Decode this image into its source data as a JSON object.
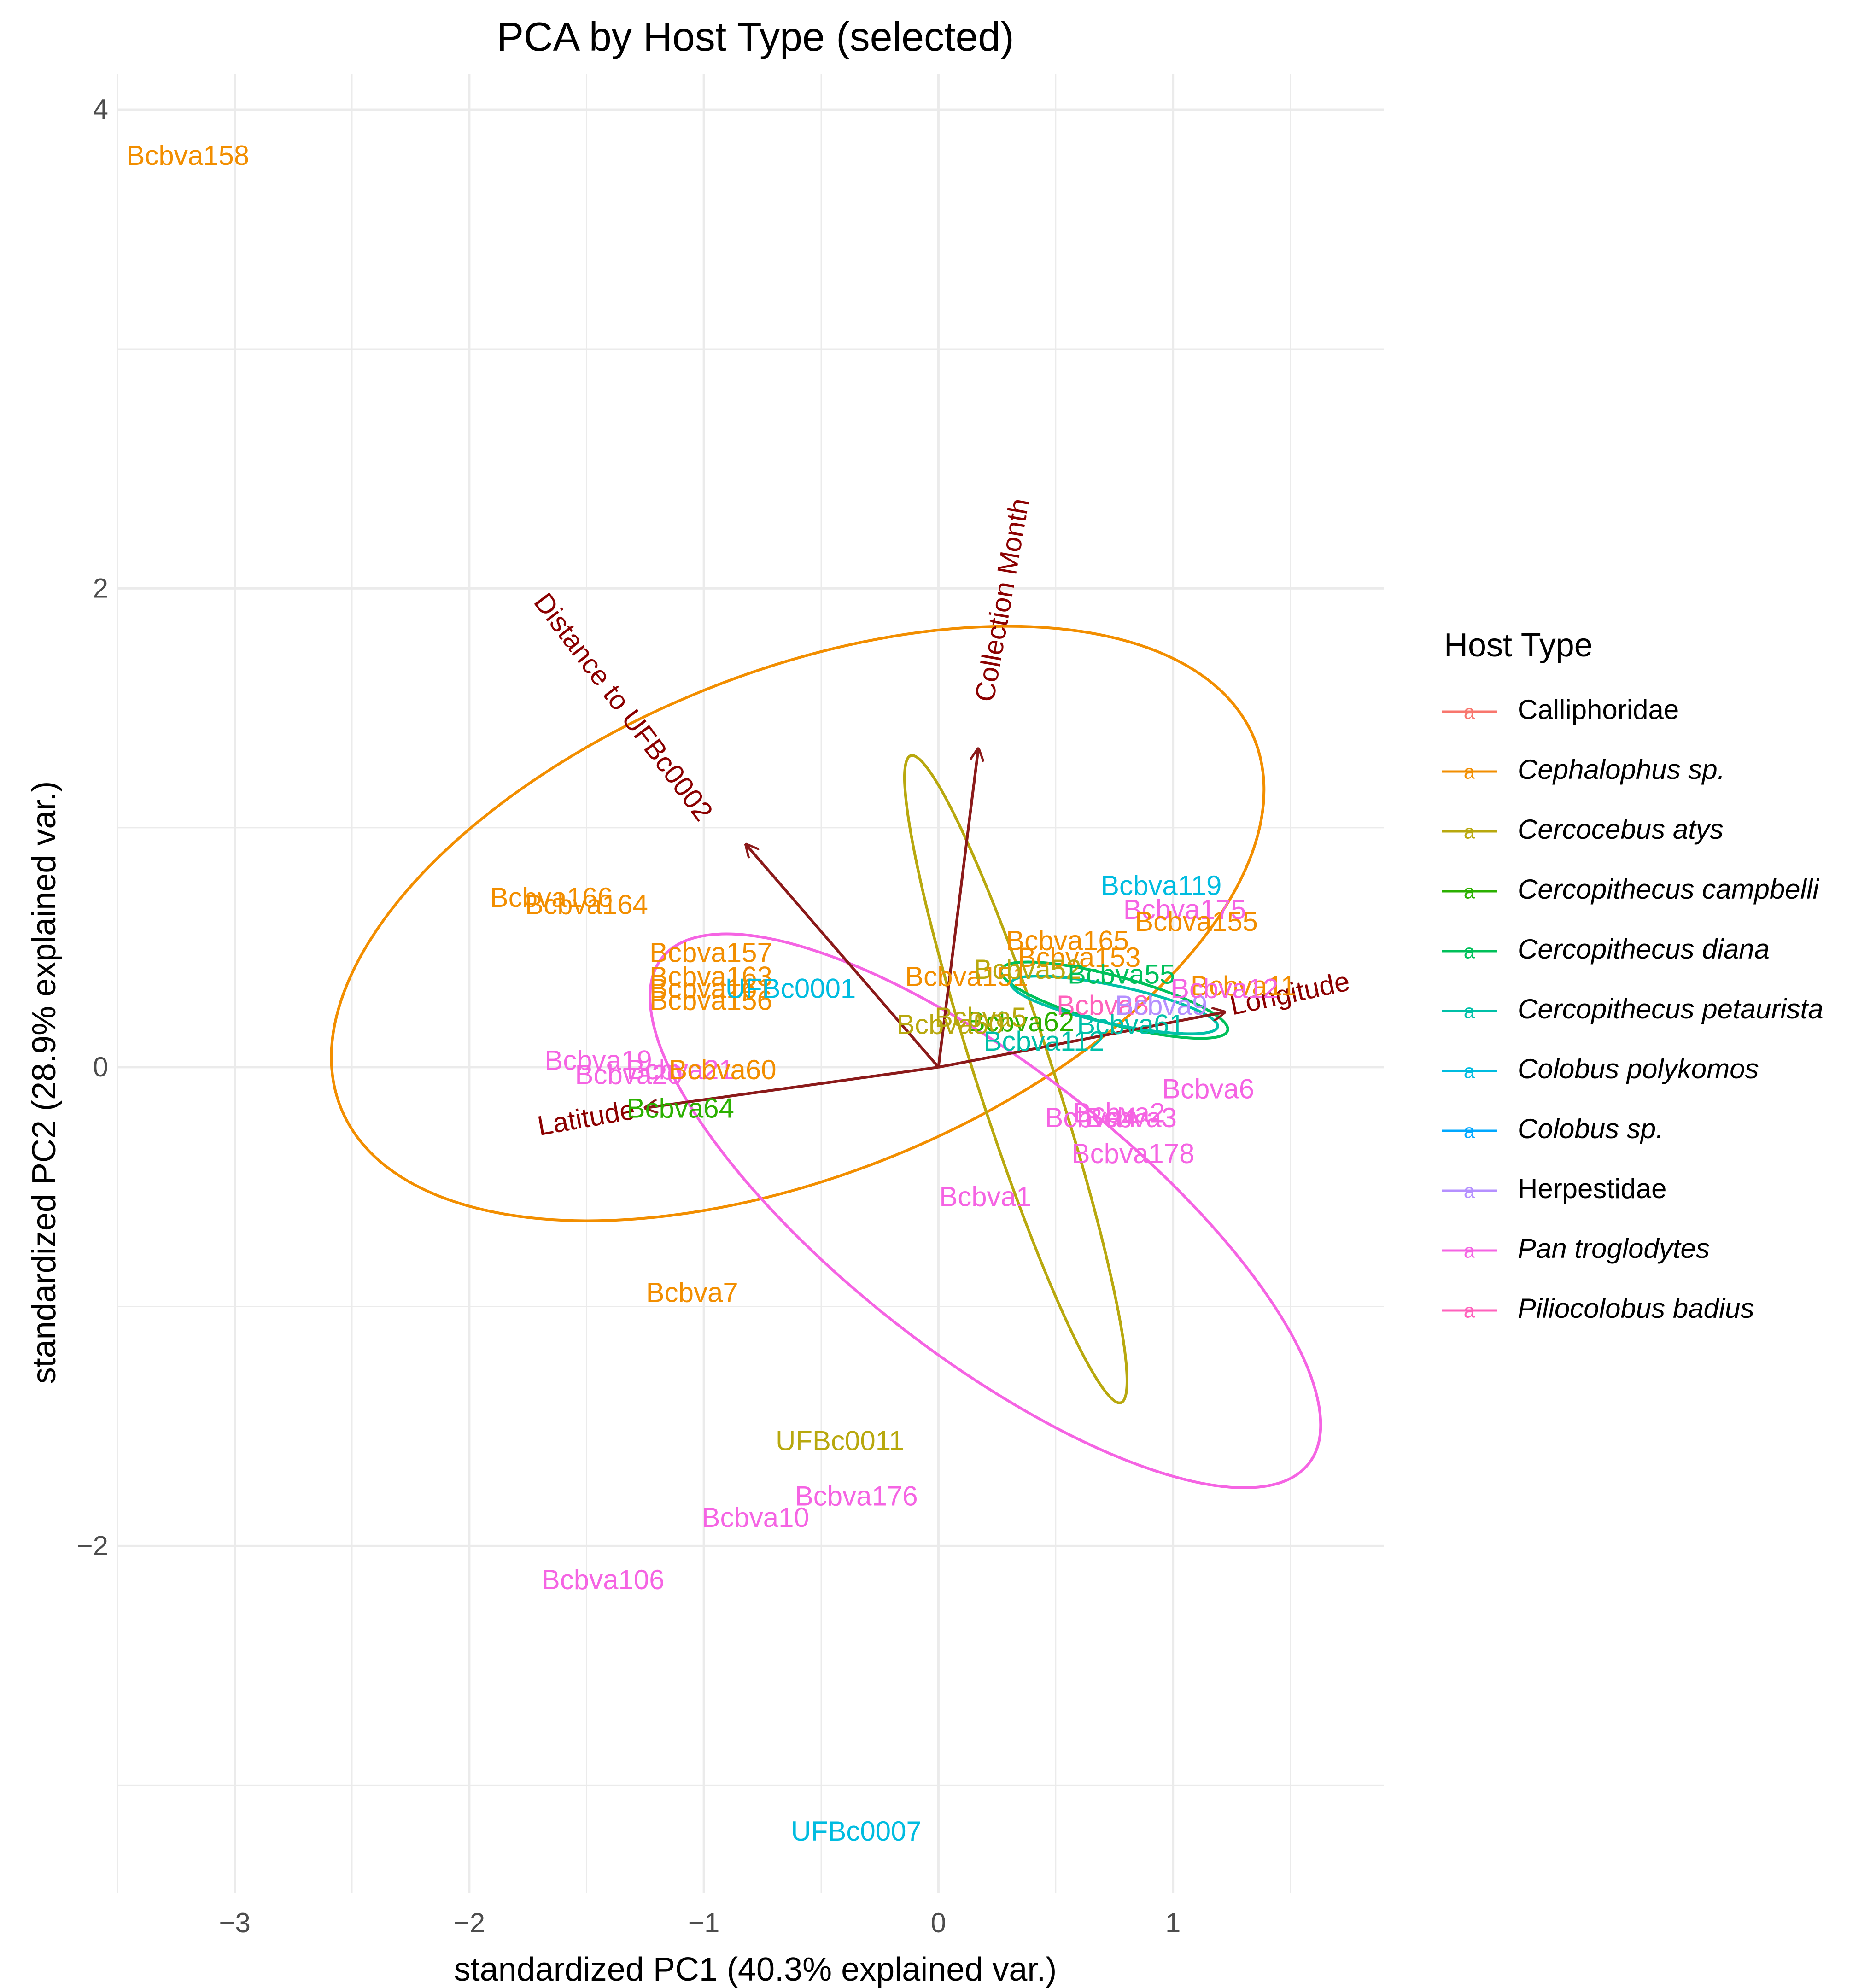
{
  "chart_data": {
    "type": "scatter",
    "title": "PCA by Host Type (selected)",
    "xlabel": "standardized PC1 (40.3% explained var.)",
    "ylabel": "standardized PC2 (28.9% explained var.)",
    "xlim": [
      -3.5,
      1.9
    ],
    "ylim": [
      -3.45,
      4.15
    ],
    "x_ticks": [
      -3,
      -2,
      -1,
      0,
      1
    ],
    "x_tick_labels": [
      "−3",
      "−2",
      "−1",
      "0",
      "1"
    ],
    "y_ticks": [
      -2,
      0,
      2,
      4
    ],
    "y_tick_labels": [
      "−2",
      "0",
      "2",
      "4"
    ],
    "grid": true,
    "legend": {
      "title": "Host Type",
      "position": "right",
      "key_glyph": "a",
      "entries": [
        {
          "name": "Calliphoridae",
          "color": "#F8766D",
          "italic": false
        },
        {
          "name": "Cephalophus sp.",
          "color": "#F28E00",
          "italic": true
        },
        {
          "name": "Cercocebus atys",
          "color": "#B8A80E",
          "italic": true
        },
        {
          "name": "Cercopithecus campbelli",
          "color": "#2BB000",
          "italic": true
        },
        {
          "name": "Cercopithecus diana",
          "color": "#00C05A",
          "italic": true
        },
        {
          "name": "Cercopithecus petaurista",
          "color": "#00C0A8",
          "italic": true
        },
        {
          "name": "Colobus polykomos",
          "color": "#00BCE0",
          "italic": true
        },
        {
          "name": "Colobus sp.",
          "color": "#00A8FF",
          "italic": true
        },
        {
          "name": "Herpestidae",
          "color": "#B590FF",
          "italic": false
        },
        {
          "name": "Pan troglodytes",
          "color": "#F564E3",
          "italic": true
        },
        {
          "name": "Piliocolobus badius",
          "color": "#FF62BC",
          "italic": true
        }
      ]
    },
    "loadings": [
      {
        "name": "Distance to UFBc0002",
        "x": -0.82,
        "y": 0.93,
        "label_x": -1.35,
        "label_y": 1.5,
        "label_angle": 53
      },
      {
        "name": "Collection Month",
        "x": 0.17,
        "y": 1.33,
        "label_x": 0.28,
        "label_y": 1.95,
        "label_angle": -80
      },
      {
        "name": "Longitude",
        "x": 1.22,
        "y": 0.23,
        "label_x": 1.5,
        "label_y": 0.3,
        "label_angle": -12
      },
      {
        "name": "Latitude",
        "x": -1.25,
        "y": -0.17,
        "label_x": -1.5,
        "label_y": -0.22,
        "label_angle": -10
      }
    ],
    "ellipses": [
      {
        "host": "Cephalophus sp.",
        "cx": -0.6,
        "cy": 0.6,
        "rx": 2.1,
        "ry": 1.05,
        "angle": -22
      },
      {
        "host": "Cercocebus atys",
        "cx": 0.33,
        "cy": -0.05,
        "rx": 1.45,
        "ry": 0.16,
        "angle": 72
      },
      {
        "host": "Pan troglodytes",
        "cx": 0.2,
        "cy": -0.6,
        "rx": 1.75,
        "ry": 0.6,
        "angle": 38
      },
      {
        "host": "Cercopithecus diana",
        "cx": 0.75,
        "cy": 0.28,
        "rx": 0.5,
        "ry": 0.1,
        "angle": 15
      },
      {
        "host": "Cercopithecus petaurista",
        "cx": 0.75,
        "cy": 0.26,
        "rx": 0.45,
        "ry": 0.08,
        "angle": 12
      }
    ],
    "points": [
      {
        "label": "Bcbva158",
        "x": -3.2,
        "y": 3.8,
        "host": "Cephalophus sp."
      },
      {
        "label": "Bcbva166",
        "x": -1.65,
        "y": 0.7,
        "host": "Cephalophus sp."
      },
      {
        "label": "Bcbva164",
        "x": -1.5,
        "y": 0.67,
        "host": "Cephalophus sp."
      },
      {
        "label": "Bcbva157",
        "x": -0.97,
        "y": 0.47,
        "host": "Cephalophus sp."
      },
      {
        "label": "Bcbva163",
        "x": -0.97,
        "y": 0.37,
        "host": "Cephalophus sp."
      },
      {
        "label": "Bcbva161",
        "x": -0.97,
        "y": 0.32,
        "host": "Cephalophus sp."
      },
      {
        "label": "Bcbva156",
        "x": -0.97,
        "y": 0.27,
        "host": "Cephalophus sp."
      },
      {
        "label": "UFBc0001",
        "x": -0.63,
        "y": 0.32,
        "host": "Colobus polykomos"
      },
      {
        "label": "Bcbva19",
        "x": -1.45,
        "y": 0.02,
        "host": "Pan troglodytes"
      },
      {
        "label": "Bcbva20",
        "x": -1.32,
        "y": -0.04,
        "host": "Pan troglodytes"
      },
      {
        "label": "Bcbva21",
        "x": -1.1,
        "y": -0.02,
        "host": "Pan troglodytes"
      },
      {
        "label": "Bcbva60",
        "x": -0.92,
        "y": -0.02,
        "host": "Cephalophus sp."
      },
      {
        "label": "Bcbva64",
        "x": -1.1,
        "y": -0.18,
        "host": "Cercopithecus campbelli"
      },
      {
        "label": "Bcbva7",
        "x": -1.05,
        "y": -0.95,
        "host": "Cephalophus sp."
      },
      {
        "label": "UFBc0011",
        "x": -0.42,
        "y": -1.57,
        "host": "Cercocebus atys"
      },
      {
        "label": "Bcbva176",
        "x": -0.35,
        "y": -1.8,
        "host": "Pan troglodytes"
      },
      {
        "label": "Bcbva10",
        "x": -0.78,
        "y": -1.89,
        "host": "Pan troglodytes"
      },
      {
        "label": "Bcbva106",
        "x": -1.43,
        "y": -2.15,
        "host": "Pan troglodytes"
      },
      {
        "label": "UFBc0007",
        "x": -0.35,
        "y": -3.2,
        "host": "Colobus polykomos"
      },
      {
        "label": "Bcbva1",
        "x": 0.2,
        "y": -0.55,
        "host": "Pan troglodytes"
      },
      {
        "label": "Bcbva178",
        "x": 0.83,
        "y": -0.37,
        "host": "Pan troglodytes"
      },
      {
        "label": "Bcbva6",
        "x": 1.15,
        "y": -0.1,
        "host": "Pan troglodytes"
      },
      {
        "label": "Bcbva2",
        "x": 0.77,
        "y": -0.2,
        "host": "Pan troglodytes"
      },
      {
        "label": "Bcbva4",
        "x": 0.65,
        "y": -0.22,
        "host": "Pan troglodytes"
      },
      {
        "label": "Bcbva3",
        "x": 0.82,
        "y": -0.22,
        "host": "Pan troglodytes"
      },
      {
        "label": "Bcbva119",
        "x": 0.95,
        "y": 0.75,
        "host": "Colobus polykomos"
      },
      {
        "label": "Bcbva175",
        "x": 1.05,
        "y": 0.65,
        "host": "Pan troglodytes"
      },
      {
        "label": "Bcbva155",
        "x": 1.1,
        "y": 0.6,
        "host": "Cephalophus sp."
      },
      {
        "label": "Bcbva165",
        "x": 0.55,
        "y": 0.52,
        "host": "Cephalophus sp."
      },
      {
        "label": "Bcbva153",
        "x": 0.6,
        "y": 0.45,
        "host": "Cephalophus sp."
      },
      {
        "label": "Bcbva151",
        "x": 0.12,
        "y": 0.37,
        "host": "Cephalophus sp."
      },
      {
        "label": "Bcbva52",
        "x": 0.38,
        "y": 0.4,
        "host": "Cercocebus atys"
      },
      {
        "label": "Bcbva55",
        "x": 0.78,
        "y": 0.38,
        "host": "Cercopithecus diana"
      },
      {
        "label": "Bcbva11",
        "x": 1.3,
        "y": 0.33,
        "host": "Cephalophus sp."
      },
      {
        "label": "Bcbva8",
        "x": 0.7,
        "y": 0.25,
        "host": "Piliocolobus badius"
      },
      {
        "label": "Bcbva9",
        "x": 0.95,
        "y": 0.25,
        "host": "Herpestidae"
      },
      {
        "label": "Bcbva12",
        "x": 1.22,
        "y": 0.32,
        "host": "Pan troglodytes"
      },
      {
        "label": "Bcbva61",
        "x": 0.82,
        "y": 0.17,
        "host": "Cercopithecus petaurista"
      },
      {
        "label": "Bcbva62",
        "x": 0.35,
        "y": 0.18,
        "host": "Cercopithecus campbelli"
      },
      {
        "label": "Bcbva5",
        "x": 0.18,
        "y": 0.2,
        "host": "Cercocebus atys"
      },
      {
        "label": "Bcbva50",
        "x": 0.05,
        "y": 0.17,
        "host": "Cercocebus atys"
      },
      {
        "label": "Bcbva112",
        "x": 0.45,
        "y": 0.1,
        "host": "Cercopithecus petaurista"
      }
    ]
  }
}
